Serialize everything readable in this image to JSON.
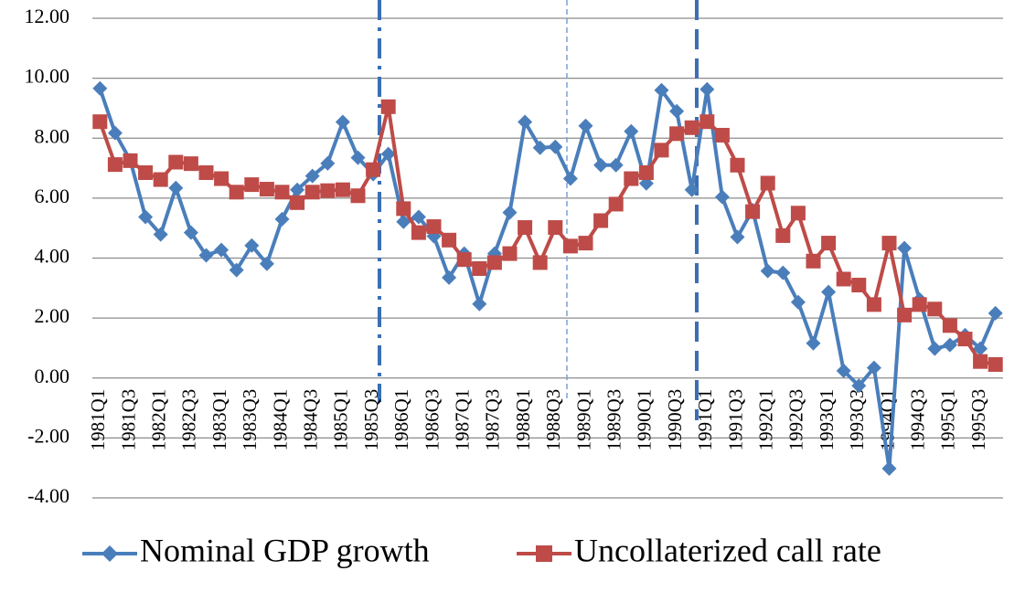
{
  "chart_data": {
    "type": "line",
    "categories": [
      "1981Q1",
      null,
      "1981Q3",
      null,
      "1982Q1",
      null,
      "1982Q3",
      null,
      "1983Q1",
      null,
      "1983Q3",
      null,
      "1984Q1",
      null,
      "1984Q3",
      null,
      "1985Q1",
      null,
      "1985Q3",
      null,
      "1986Q1",
      null,
      "1986Q3",
      null,
      "1987Q1",
      null,
      "1987Q3",
      null,
      "1988Q1",
      null,
      "1988Q3",
      null,
      "1989Q1",
      null,
      "1989Q3",
      null,
      "1990Q1",
      null,
      "1990Q3",
      null,
      "1991Q1",
      null,
      "1991Q3",
      null,
      "1992Q1",
      null,
      "1992Q3",
      null,
      "1993Q1",
      null,
      "1993Q3",
      null,
      "1994Q1",
      null,
      "1994Q3",
      null,
      "1995Q1",
      null,
      "1995Q3",
      null
    ],
    "series": [
      {
        "name": "Nominal GDP growth",
        "color": "#4a7ebb",
        "values": [
          9.66,
          8.17,
          7.26,
          5.37,
          4.79,
          6.34,
          4.85,
          4.09,
          4.27,
          3.6,
          4.42,
          3.81,
          5.3,
          6.28,
          6.74,
          7.16,
          8.54,
          7.35,
          6.8,
          7.47,
          5.21,
          5.37,
          4.73,
          3.35,
          4.15,
          2.47,
          4.15,
          5.52,
          8.54,
          7.68,
          7.71,
          6.65,
          8.41,
          7.1,
          7.1,
          8.23,
          6.49,
          9.6,
          8.9,
          6.28,
          9.63,
          6.04,
          4.7,
          5.6,
          3.57,
          3.51,
          2.53,
          1.16,
          2.87,
          0.24,
          -0.26,
          0.34,
          -3.02,
          4.33,
          2.62,
          0.98,
          1.1,
          1.43,
          0.98,
          2.16
        ]
      },
      {
        "name": "Uncollaterized call rate",
        "color": "#be4b48",
        "values": [
          8.55,
          7.12,
          7.25,
          6.85,
          6.62,
          7.2,
          7.15,
          6.85,
          6.65,
          6.2,
          6.45,
          6.3,
          6.2,
          5.85,
          6.2,
          6.25,
          6.28,
          6.08,
          6.95,
          9.05,
          5.65,
          4.85,
          5.05,
          4.6,
          3.95,
          3.65,
          3.85,
          4.15,
          5.02,
          3.85,
          5.02,
          4.4,
          4.5,
          5.25,
          5.8,
          6.65,
          6.85,
          7.6,
          8.15,
          8.35,
          8.55,
          8.1,
          7.1,
          5.55,
          6.5,
          4.75,
          5.5,
          3.9,
          4.5,
          3.3,
          3.1,
          2.45,
          4.5,
          2.1,
          2.45,
          2.3,
          1.75,
          1.3,
          0.55,
          0.45
        ]
      }
    ],
    "ylim": [
      -4,
      12
    ],
    "yticks": [
      {
        "value": -4,
        "label": "-4.00"
      },
      {
        "value": -2,
        "label": "-2.00"
      },
      {
        "value": 0,
        "label": "0.00"
      },
      {
        "value": 2,
        "label": "2.00"
      },
      {
        "value": 4,
        "label": "4.00"
      },
      {
        "value": 6,
        "label": "6.00"
      },
      {
        "value": 8,
        "label": "8.00"
      },
      {
        "value": 10,
        "label": "10.00"
      },
      {
        "value": 12,
        "label": "12.00"
      }
    ],
    "grid": true
  }
}
